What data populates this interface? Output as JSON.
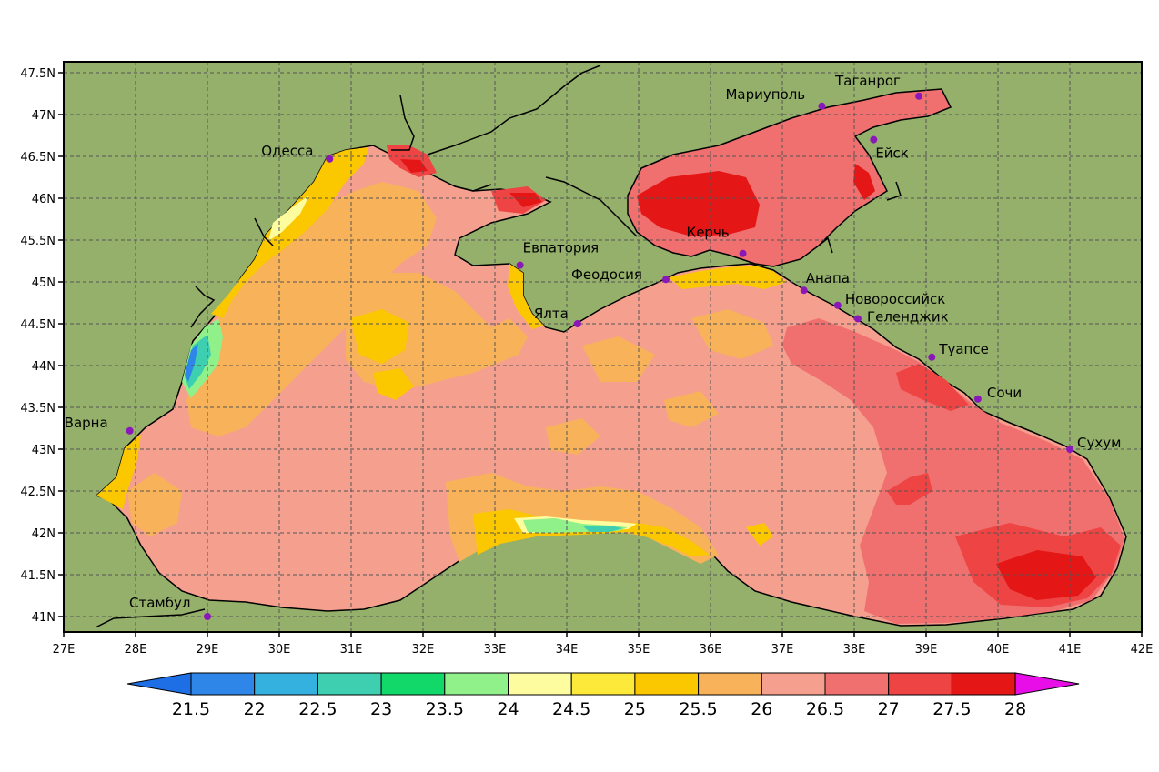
{
  "map": {
    "lon_labels": [
      "27E",
      "28E",
      "29E",
      "30E",
      "31E",
      "32E",
      "33E",
      "34E",
      "35E",
      "36E",
      "37E",
      "38E",
      "39E",
      "40E",
      "41E",
      "42E"
    ],
    "lat_labels": [
      "47.5N",
      "47N",
      "46.5N",
      "46N",
      "45.5N",
      "45N",
      "44.5N",
      "44N",
      "43.5N",
      "43N",
      "42.5N",
      "42N",
      "41.5N",
      "41N"
    ],
    "cities": [
      {
        "name": "Одесса",
        "lon": 30.7,
        "lat": 46.47
      },
      {
        "name": "Евпатория",
        "lon": 33.35,
        "lat": 45.2
      },
      {
        "name": "Феодосия",
        "lon": 35.38,
        "lat": 45.03
      },
      {
        "name": "Керчь",
        "lon": 36.45,
        "lat": 45.34
      },
      {
        "name": "Мариуполь",
        "lon": 37.55,
        "lat": 47.1
      },
      {
        "name": "Таганрог",
        "lon": 38.9,
        "lat": 47.22
      },
      {
        "name": "Ейск",
        "lon": 38.27,
        "lat": 46.7
      },
      {
        "name": "Анапа",
        "lon": 37.3,
        "lat": 44.9
      },
      {
        "name": "Новороссийск",
        "lon": 37.77,
        "lat": 44.72
      },
      {
        "name": "Геленджик",
        "lon": 38.05,
        "lat": 44.56
      },
      {
        "name": "Ялта",
        "lon": 34.15,
        "lat": 44.5
      },
      {
        "name": "Туапсе",
        "lon": 39.08,
        "lat": 44.1
      },
      {
        "name": "Сочи",
        "lon": 39.72,
        "lat": 43.6
      },
      {
        "name": "Сухум",
        "lon": 41.0,
        "lat": 43.0
      },
      {
        "name": "Варна",
        "lon": 27.92,
        "lat": 43.22
      },
      {
        "name": "Стамбул",
        "lon": 29.0,
        "lat": 41.0
      }
    ]
  },
  "legend": {
    "labels": [
      "21.5",
      "22",
      "22.5",
      "23",
      "23.5",
      "24",
      "24.5",
      "25",
      "25.5",
      "26",
      "26.5",
      "27",
      "27.5",
      "28"
    ],
    "colors": [
      "#1e6fe6",
      "#2d86e8",
      "#35b1e0",
      "#3dcfb0",
      "#12d86a",
      "#90f08a",
      "#fdfda0",
      "#fde93a",
      "#fbc800",
      "#f8b25a",
      "#f5a08e",
      "#f07070",
      "#ee4444",
      "#e41616",
      "#e30808",
      "#e80ee8"
    ]
  }
}
